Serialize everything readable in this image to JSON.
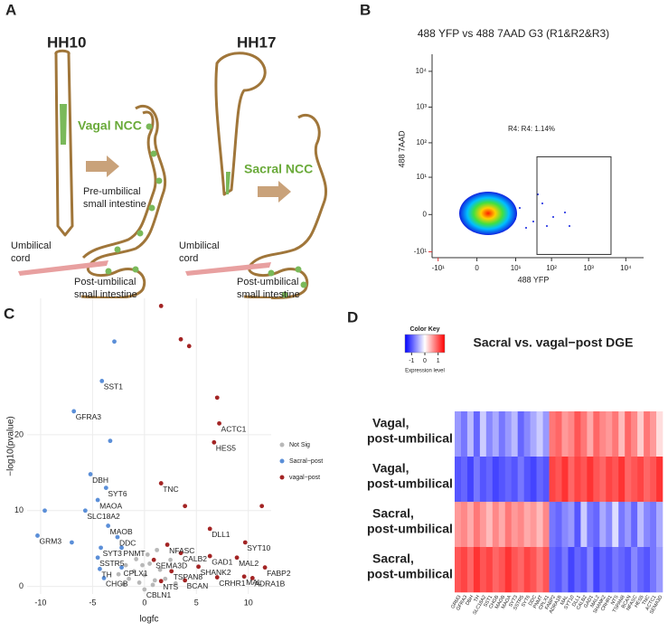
{
  "panel_labels": [
    "A",
    "B",
    "C",
    "D"
  ],
  "diagram": {
    "left": {
      "stage": "HH10",
      "cells": "Vagal NCC",
      "pre_umbilical": [
        "Pre-umbilical",
        "small intestine"
      ],
      "cord": [
        "Umbilical",
        "cord"
      ],
      "post_umbilical": [
        "Post-umbilical",
        "small intestine"
      ]
    },
    "right": {
      "stage": "HH17",
      "cells": "Sacral NCC",
      "cord": [
        "Umbilical",
        "cord"
      ],
      "post_umbilical": [
        "Post-umbilical",
        "small intestine"
      ]
    }
  },
  "chart_data": [
    {
      "type": "flow",
      "title": "488 YFP vs 488 7AAD  G3 (R1&R2&R3)",
      "xlabel": "488 YFP",
      "ylabel": "488 7AAD",
      "scale": "symlog",
      "xlim": [
        -15,
        30000
      ],
      "ylim": [
        -15,
        30000
      ],
      "xticks": [
        {
          "value": -10,
          "label": "-10¹"
        },
        0,
        {
          "value": 10,
          "label": "10¹"
        },
        {
          "value": 100,
          "label": "10²"
        },
        {
          "value": 1000,
          "label": "10³"
        },
        {
          "value": 10000,
          "label": "10⁴"
        }
      ],
      "yticks": [
        {
          "value": -10,
          "label": "-10¹"
        },
        0,
        {
          "value": 10,
          "label": "10¹"
        },
        {
          "value": 100,
          "label": "10²"
        },
        {
          "value": 1000,
          "label": "10³"
        },
        {
          "value": 10000,
          "label": "10⁴"
        }
      ],
      "negative_color": "#e03030",
      "gate": {
        "label": "R4: R4: 1.14%",
        "xlim": [
          40,
          4000
        ],
        "ylim": [
          -12,
          40
        ]
      }
    },
    {
      "type": "scatter",
      "xlabel": "logfc",
      "ylabel": "−log10(pvalue)",
      "xlim": [
        -11.3,
        12.2
      ],
      "ylim": [
        -1,
        38
      ],
      "xticks": [
        -10,
        -5,
        0,
        5,
        10
      ],
      "yticks": [
        0,
        10,
        20
      ],
      "grid": true,
      "legend": "right",
      "series": [
        {
          "name": "Not Sig",
          "color": "#b8b8b8",
          "x": [
            -1.5,
            -1,
            -0.5,
            0,
            0.5,
            1,
            1.5,
            -2,
            2,
            2.5,
            0.3,
            -0.8,
            -1.8,
            1.2,
            3,
            -2.5,
            0.8,
            -0.2,
            0
          ],
          "values": [
            1,
            2,
            0.5,
            1.5,
            3,
            0.8,
            2.2,
            0.3,
            1,
            3.5,
            4.2,
            3.6,
            2.8,
            4.8,
            0.4,
            1.6,
            0.2,
            2.8,
            -0.4
          ],
          "labels": [
            null,
            null,
            null,
            null,
            null,
            null,
            null,
            null,
            null,
            null,
            null,
            null,
            null,
            null,
            null,
            null,
            null,
            null,
            "CBLN1"
          ]
        },
        {
          "name": "Sacral−post",
          "color": "#5b8fd8",
          "x": [
            -4.1,
            -6.8,
            -5.2,
            -3.7,
            -4.5,
            -5.7,
            -10.3,
            -3.5,
            -2.6,
            -4.2,
            -2.2,
            -4.5,
            -4.3,
            -2.2,
            -3.9,
            -2.9,
            -9.6,
            -3.3,
            -7
          ],
          "values": [
            27.1,
            23.1,
            14.8,
            13,
            11.4,
            10,
            6.7,
            8,
            6.5,
            5.1,
            5.1,
            3.8,
            2.3,
            2.5,
            1.1,
            32.3,
            10,
            19.2,
            5.8
          ],
          "labels": [
            "SST1",
            "GFRA3",
            "DBH",
            "SYT6",
            "MAOA",
            "SLC18A2",
            "GRM3",
            "MAOB",
            "DDC",
            "SYT3",
            "PNMT",
            "SSTR5",
            "TH",
            "CPLX1",
            "CHGB",
            null,
            null,
            null,
            null
          ]
        },
        {
          "name": "vagal−post",
          "color": "#a32424",
          "x": [
            7.2,
            6.7,
            1.6,
            6.3,
            9.7,
            2.2,
            3.5,
            6.3,
            8.9,
            11.6,
            0.9,
            5.2,
            2.6,
            10.4,
            1.6,
            3.9,
            7,
            9.6,
            1.6,
            3.5,
            4.3,
            7,
            11.3,
            3.9
          ],
          "values": [
            21.5,
            19,
            13.6,
            7.6,
            5.8,
            5.5,
            4.4,
            4,
            3.8,
            2.5,
            3.5,
            2.6,
            2,
            1.1,
            0.7,
            0.8,
            1.2,
            1.3,
            37,
            32.6,
            31.7,
            24.9,
            10.6,
            10.6
          ],
          "labels": [
            "ACTC1",
            "HES5",
            "TNC",
            "DLL1",
            "SYT10",
            "NFASC",
            "CALB2",
            "GAD1",
            "MAL2",
            "FABP2",
            "SEMA3D",
            "SHANK2",
            "TSPAN8",
            "ADRA1B",
            "NTS",
            "BCAN",
            "CRHR1",
            "MAL",
            null,
            null,
            null,
            null,
            null,
            null
          ]
        }
      ]
    },
    {
      "type": "heatmap",
      "title": "Sacral vs. vagal−post DGE",
      "rows": [
        [
          "Vagal,",
          "post-umbilical"
        ],
        [
          "Vagal,",
          "post-umbilical"
        ],
        [
          "Sacral,",
          "post-umbilical"
        ],
        [
          "Sacral,",
          "post-umbilical"
        ]
      ],
      "columns": [
        "GRM3",
        "GFRA3",
        "DBH",
        "TH",
        "SLC18A2",
        "SST1",
        "CHGB",
        "MAOB",
        "MAOA",
        "SYT3",
        "SSTR5",
        "SYT6",
        "DDC",
        "PNMT",
        "CPLX1",
        "FABP2",
        "ADRA1B",
        "MAL",
        "SYT10",
        "DLL1",
        "CALB2",
        "GAD1",
        "MAL2",
        "SHANK2",
        "CRHR1",
        "NTS",
        "TSPAN8",
        "BCAN",
        "NFASC",
        "HES5",
        "TNC",
        "ACTC1",
        "SEMA3D"
      ],
      "values": [
        [
          -0.6,
          -0.8,
          -0.4,
          -0.9,
          -0.3,
          -0.7,
          -0.5,
          -0.8,
          -0.6,
          -0.4,
          -0.9,
          -0.7,
          -0.5,
          -0.3,
          -0.6,
          0.8,
          0.9,
          0.6,
          0.7,
          1.0,
          0.8,
          0.5,
          0.9,
          0.7,
          0.6,
          0.8,
          0.4,
          0.9,
          0.7,
          0.3,
          0.8,
          0.6,
          0.2
        ],
        [
          -1.0,
          -0.9,
          -1.1,
          -0.8,
          -1.0,
          -0.9,
          -1.1,
          -1.0,
          -0.9,
          -1.0,
          -0.8,
          -1.0,
          -1.1,
          -0.9,
          -1.0,
          1.1,
          1.0,
          1.2,
          0.9,
          1.1,
          1.0,
          1.2,
          1.0,
          0.9,
          1.1,
          1.0,
          1.2,
          0.9,
          1.0,
          1.1,
          0.9,
          1.0,
          1.2
        ],
        [
          0.6,
          0.7,
          0.5,
          0.8,
          0.6,
          0.4,
          0.7,
          0.5,
          0.8,
          0.6,
          0.7,
          0.5,
          0.6,
          0.4,
          0.7,
          -0.8,
          -0.9,
          -0.7,
          -0.6,
          -1.0,
          -0.3,
          -0.8,
          -0.9,
          -0.5,
          -0.7,
          -0.2,
          -0.8,
          -0.6,
          -0.9,
          -0.4,
          -0.7,
          -0.8,
          -0.5
        ],
        [
          1.0,
          1.1,
          0.9,
          1.2,
          1.0,
          1.1,
          0.9,
          1.0,
          1.2,
          1.0,
          0.9,
          1.1,
          1.0,
          0.8,
          1.0,
          -0.9,
          -1.0,
          -0.8,
          -1.1,
          -0.9,
          -1.0,
          -0.7,
          -1.1,
          -0.9,
          -1.0,
          -0.8,
          -0.9,
          -1.0,
          -0.7,
          -0.9,
          -1.0,
          -0.8,
          -0.6
        ]
      ],
      "zlim": [
        -1.5,
        1.5
      ],
      "colors": [
        "#0000ff",
        "#ffffff",
        "#ff0000"
      ],
      "key": {
        "title": "Color Key",
        "label": "Expression level",
        "ticks": [
          -1,
          0,
          1
        ]
      }
    }
  ]
}
